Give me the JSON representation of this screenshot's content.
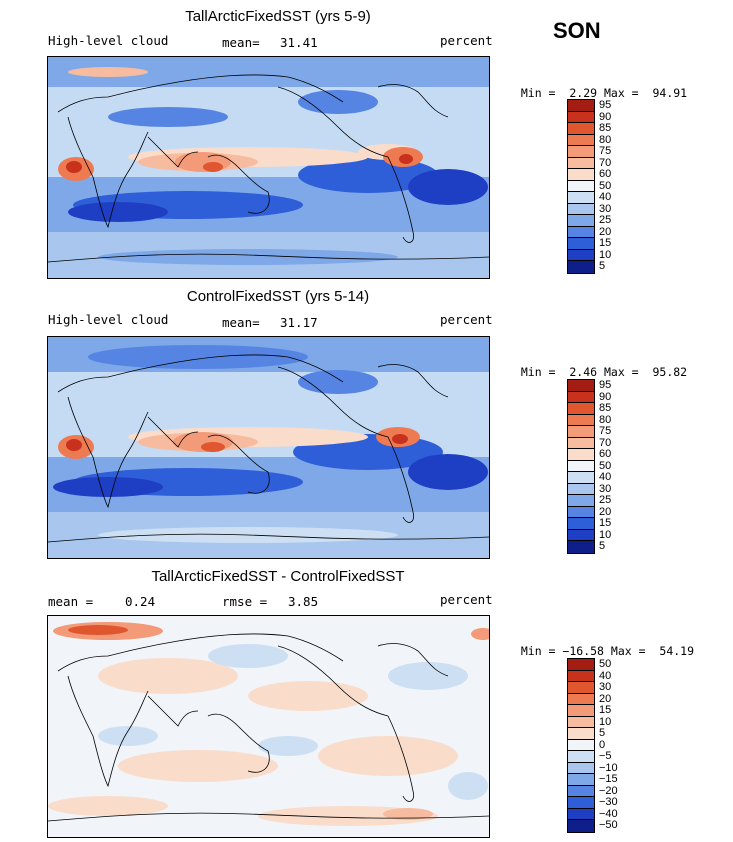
{
  "season": "SON",
  "colors": {
    "land": "#000000",
    "ocean_base": "#cfe3f5"
  },
  "panels": [
    {
      "title": "TallArcticFixedSST (yrs 5-9)",
      "left_label": "High-level cloud",
      "mid_label": "mean=",
      "mid_value": "31.41",
      "right_label": "percent",
      "min_label": "Min =",
      "min_value": "2.29",
      "max_label": "Max =",
      "max_value": "94.91",
      "colorbar_labels": [
        "95",
        "90",
        "85",
        "80",
        "75",
        "70",
        "60",
        "50",
        "40",
        "30",
        "25",
        "20",
        "15",
        "10",
        "5"
      ],
      "colorbar_colors": [
        "#a31d12",
        "#c8311c",
        "#e0562e",
        "#ee7a52",
        "#f39a78",
        "#f7bb9f",
        "#fadccb",
        "#f1f4f8",
        "#cddff3",
        "#a9c7ee",
        "#7ea8e8",
        "#5584e2",
        "#2f5fd8",
        "#1e3fc4",
        "#0f1f8a"
      ]
    },
    {
      "title": "ControlFixedSST (yrs 5-14)",
      "left_label": "High-level cloud",
      "mid_label": "mean=",
      "mid_value": "31.17",
      "right_label": "percent",
      "min_label": "Min =",
      "min_value": "2.46",
      "max_label": "Max =",
      "max_value": "95.82",
      "colorbar_labels": [
        "95",
        "90",
        "85",
        "80",
        "75",
        "70",
        "60",
        "50",
        "40",
        "30",
        "25",
        "20",
        "15",
        "10",
        "5"
      ],
      "colorbar_colors": [
        "#a31d12",
        "#c8311c",
        "#e0562e",
        "#ee7a52",
        "#f39a78",
        "#f7bb9f",
        "#fadccb",
        "#f1f4f8",
        "#cddff3",
        "#a9c7ee",
        "#7ea8e8",
        "#5584e2",
        "#2f5fd8",
        "#1e3fc4",
        "#0f1f8a"
      ]
    },
    {
      "title": "TallArcticFixedSST - ControlFixedSST",
      "left_label": "mean =",
      "left_value": "0.24",
      "mid_label": "rmse =",
      "mid_value": "3.85",
      "right_label": "percent",
      "min_label": "Min =",
      "min_value": "−16.58",
      "max_label": "Max =",
      "max_value": "54.19",
      "colorbar_labels": [
        "50",
        "40",
        "30",
        "20",
        "15",
        "10",
        "5",
        "0",
        "−5",
        "−10",
        "−15",
        "−20",
        "−30",
        "−40",
        "−50"
      ],
      "colorbar_colors": [
        "#a31d12",
        "#c8311c",
        "#e0562e",
        "#ee7a52",
        "#f39a78",
        "#f7bb9f",
        "#fadccb",
        "#f1f4f8",
        "#cddff3",
        "#a9c7ee",
        "#7ea8e8",
        "#5584e2",
        "#2f5fd8",
        "#1e3fc4",
        "#0f1f8a"
      ]
    }
  ]
}
